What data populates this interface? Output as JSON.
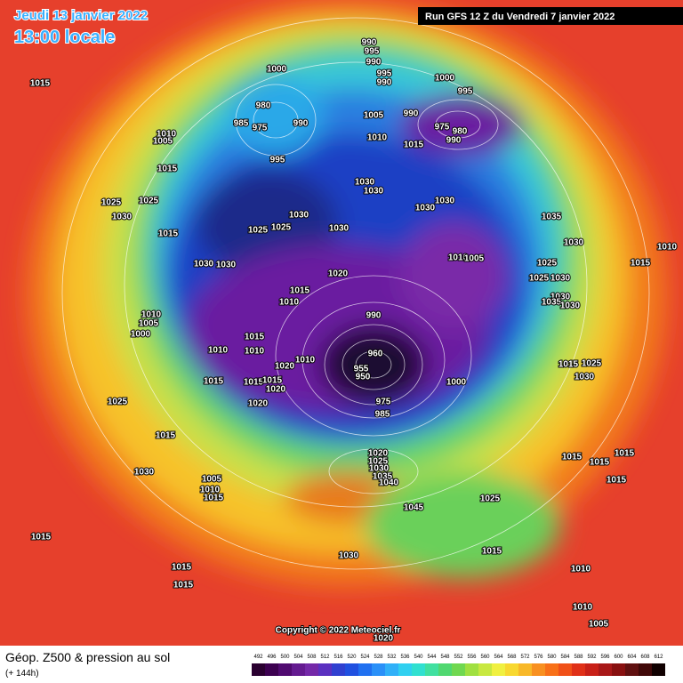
{
  "header": {
    "date": "Jeudi 13 janvier 2022",
    "time": "13:00 locale",
    "run": "Run GFS 12 Z du Vendredi 7 janvier 2022"
  },
  "footer": {
    "title": "Géop. Z500 & pression au sol",
    "lead": "(+ 144h)",
    "copyright": "Copyright © 2022 Meteociel.fr"
  },
  "color_scale": [
    492,
    496,
    500,
    504,
    508,
    512,
    516,
    520,
    524,
    528,
    532,
    536,
    540,
    544,
    548,
    552,
    556,
    560,
    564,
    568,
    572,
    576,
    580,
    584,
    588,
    592,
    596,
    600,
    604,
    608,
    612
  ],
  "pressure_labels": [
    990,
    995,
    990,
    995,
    990,
    1000,
    1000,
    995,
    980,
    985,
    975,
    990,
    1005,
    990,
    975,
    980,
    990,
    1010,
    1015,
    1015,
    1010,
    1005,
    1015,
    995,
    1030,
    1030,
    1030,
    1030,
    1025,
    1025,
    1030,
    1030,
    1025,
    1025,
    1030,
    1015,
    1035,
    1030,
    1010,
    1010,
    1005,
    1025,
    1015,
    1030,
    1030,
    1020,
    1025,
    1030,
    1015,
    1010,
    1030,
    1035,
    1030,
    990,
    1010,
    1005,
    1000,
    1015,
    1010,
    1010,
    960,
    955,
    950,
    1010,
    1020,
    1015,
    1015,
    1015,
    1015,
    1020,
    1025,
    1030,
    1000,
    1020,
    975,
    985,
    1025,
    1015,
    1020,
    1025,
    1030,
    1035,
    1040,
    1030,
    1005,
    1010,
    1015,
    1045,
    1025,
    1015,
    1015,
    1015,
    1015,
    1015,
    1030,
    1015,
    1015,
    1015,
    1010,
    1010,
    1005,
    1020
  ]
}
